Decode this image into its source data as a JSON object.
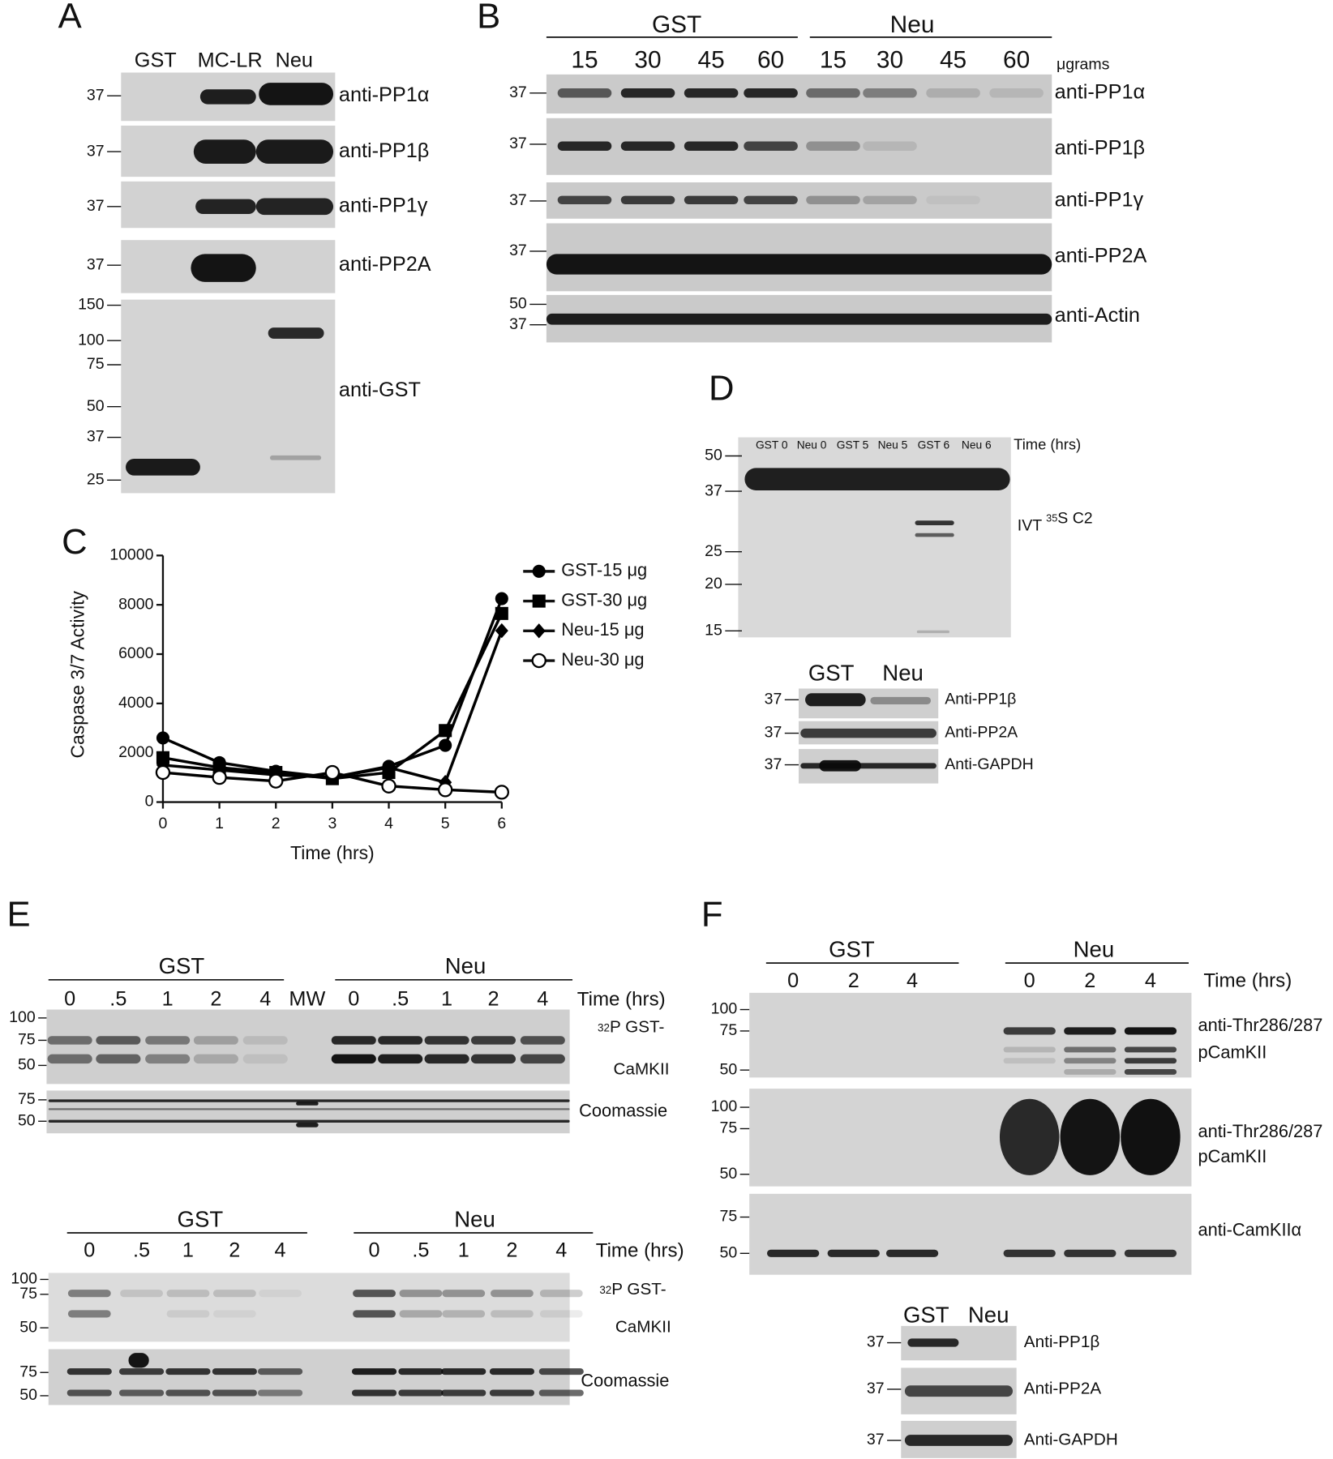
{
  "panels": {
    "A": {
      "label": "A",
      "lanes": [
        "GST",
        "MC-LR",
        "Neu"
      ],
      "blots": [
        {
          "marker": "37",
          "antibody": "anti-PP1α"
        },
        {
          "marker": "37",
          "antibody": "anti-PP1β"
        },
        {
          "marker": "37",
          "antibody": "anti-PP1γ"
        },
        {
          "marker": "37",
          "antibody": "anti-PP2A"
        }
      ],
      "gst_blot": {
        "markers": [
          "150",
          "100",
          "75",
          "50",
          "37",
          "25"
        ],
        "antibody": "anti-GST"
      }
    },
    "B": {
      "label": "B",
      "groups": [
        "GST",
        "Neu"
      ],
      "amounts": [
        "15",
        "30",
        "45",
        "60",
        "15",
        "30",
        "45",
        "60"
      ],
      "unit": "μgrams",
      "blots": [
        {
          "markers": [
            "37"
          ],
          "antibody": "anti-PP1α"
        },
        {
          "markers": [
            "37"
          ],
          "antibody": "anti-PP1β"
        },
        {
          "markers": [
            "37"
          ],
          "antibody": "anti-PP1γ"
        },
        {
          "markers": [
            "37"
          ],
          "antibody": "anti-PP2A"
        },
        {
          "markers": [
            "50",
            "37"
          ],
          "antibody": "anti-Actin"
        }
      ]
    },
    "C": {
      "label": "C"
    },
    "D": {
      "label": "D",
      "lanes": [
        "GST 0",
        "Neu 0",
        "GST 5",
        "Neu 5",
        "GST 6",
        "Neu 6"
      ],
      "time_label": "Time (hrs)",
      "markers": [
        "50",
        "37",
        "25",
        "20",
        "15"
      ],
      "gel_label": {
        "prefix": "IVT ",
        "superscript": "35",
        "suffix": "S C2"
      },
      "lower": {
        "groups": [
          "GST",
          "Neu"
        ],
        "blots": [
          {
            "marker": "37",
            "antibody": "Anti-PP1β"
          },
          {
            "marker": "37",
            "antibody": "Anti-PP2A"
          },
          {
            "marker": "37",
            "antibody": "Anti-GAPDH"
          }
        ]
      }
    },
    "E": {
      "label": "E",
      "top": {
        "groups": [
          "GST",
          "Neu"
        ],
        "times": [
          "0",
          ".5",
          "1",
          "2",
          "4",
          "MW",
          "0",
          ".5",
          "1",
          "2",
          "4"
        ],
        "time_label": "Time (hrs)",
        "gel_markers": [
          "100",
          "75",
          "50"
        ],
        "gel_label": {
          "superscript": "32",
          "line1": "P GST-",
          "line2": "CaMKII"
        },
        "coomassie_markers": [
          "75",
          "50"
        ],
        "coomassie_label": "Coomassie"
      },
      "bottom": {
        "groups": [
          "GST",
          "Neu"
        ],
        "times": [
          "0",
          ".5",
          "1",
          "2",
          "4",
          "0",
          ".5",
          "1",
          "2",
          "4"
        ],
        "time_label": "Time (hrs)",
        "gel_markers": [
          "100",
          "75",
          "50"
        ],
        "gel_label": {
          "superscript": "32",
          "line1": "P GST-",
          "line2": "CaMKII"
        },
        "coomassie_markers": [
          "75",
          "50"
        ],
        "coomassie_label": "Coomassie"
      }
    },
    "F": {
      "label": "F",
      "groups": [
        "GST",
        "Neu"
      ],
      "times": [
        "0",
        "2",
        "4",
        "0",
        "2",
        "4"
      ],
      "time_label": "Time (hrs)",
      "blots": [
        {
          "markers": [
            "100",
            "75",
            "50"
          ],
          "antibody": [
            "anti-Thr286/287",
            "pCamKII"
          ]
        },
        {
          "markers": [
            "100",
            "75",
            "50"
          ],
          "antibody": [
            "anti-Thr286/287",
            "pCamKII"
          ]
        },
        {
          "markers": [
            "75",
            "50"
          ],
          "antibody": [
            "anti-CamKIIα"
          ]
        }
      ],
      "lower": {
        "groups": [
          "GST",
          "Neu"
        ],
        "blots": [
          {
            "marker": "37",
            "antibody": "Anti-PP1β"
          },
          {
            "marker": "37",
            "antibody": "Anti-PP2A"
          },
          {
            "marker": "37",
            "antibody": "Anti-GAPDH"
          }
        ]
      }
    }
  },
  "chart_data": {
    "type": "line",
    "x_label": "Time (hrs)",
    "y_label": "Caspase 3/7 Activity",
    "x": [
      0,
      1,
      2,
      3,
      4,
      5,
      6
    ],
    "xlim": [
      0,
      6
    ],
    "xticks": [
      0,
      1,
      2,
      3,
      4,
      5,
      6
    ],
    "ylim": [
      0,
      10000
    ],
    "yticks": [
      0,
      2000,
      4000,
      6000,
      8000,
      10000
    ],
    "series": [
      {
        "name": "GST-15 μg",
        "color": "#000000",
        "marker": "circle",
        "values": [
          2600,
          1600,
          1250,
          1000,
          1450,
          2300,
          8250
        ]
      },
      {
        "name": "GST-30 μg",
        "color": "#000000",
        "marker": "square",
        "values": [
          1800,
          1400,
          1200,
          950,
          1200,
          2900,
          7650
        ]
      },
      {
        "name": "Neu-15 μg",
        "color": "#000000",
        "marker": "diamond",
        "values": [
          1500,
          1300,
          1100,
          1000,
          1400,
          800,
          6950
        ]
      },
      {
        "name": "Neu-30 μg",
        "color": "#000000",
        "marker": "open-circle",
        "values": [
          1200,
          1000,
          850,
          1200,
          650,
          500,
          400
        ]
      }
    ]
  }
}
